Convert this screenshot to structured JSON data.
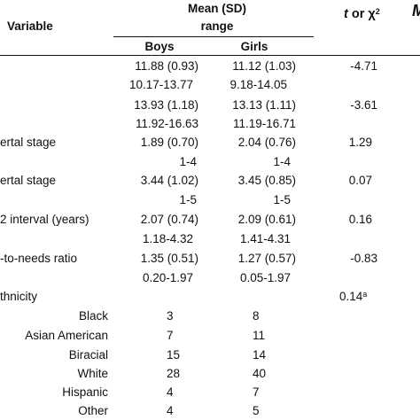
{
  "header": {
    "variable": "Variable",
    "mean_sd": "Mean (SD)",
    "range": "range",
    "stat_t": "t",
    "stat_or": " or ",
    "stat_chi": "χ",
    "stat_chi_sup": "2",
    "boys": "Boys",
    "girls": "Girls",
    "edge_glyph": "M"
  },
  "rows": [
    {
      "label": "",
      "boys": "11.88 (0.93)",
      "girls": "11.12 (1.03)",
      "stat": "-4.71"
    },
    {
      "label": "",
      "boys": "10.17-13.77",
      "girls": "9.18-14.05",
      "stat": ""
    },
    {
      "label": "",
      "boys": "13.93 (1.18)",
      "girls": "13.13 (1.11)",
      "stat": "-3.61"
    },
    {
      "label": "",
      "boys": "11.92-16.63",
      "girls": "11.19-16.71",
      "stat": ""
    },
    {
      "label": "ertal stage",
      "boys": "1.89 (0.70)",
      "girls": "2.04 (0.76)",
      "stat": "1.29"
    },
    {
      "label": "",
      "boys": "1-4",
      "girls": "1-4",
      "stat": ""
    },
    {
      "label": "ertal stage",
      "boys": "3.44 (1.02)",
      "girls": "3.45 (0.85)",
      "stat": "0.07"
    },
    {
      "label": "",
      "boys": "1-5",
      "girls": "1-5",
      "stat": ""
    },
    {
      "label": "2 interval (years)",
      "boys": "2.07 (0.74)",
      "girls": "2.09 (0.61)",
      "stat": "0.16"
    },
    {
      "label": "",
      "boys": "1.18-4.32",
      "girls": "1.41-4.31",
      "stat": ""
    },
    {
      "label": "-to-needs ratio",
      "boys": "1.35 (0.51)",
      "girls": "1.27 (0.57)",
      "stat": "-0.83"
    },
    {
      "label": "",
      "boys": "0.20-1.97",
      "girls": "0.05-1.97",
      "stat": ""
    }
  ],
  "ethnicity": {
    "label": "thnicity",
    "stat": "0.14",
    "stat_sup": "a",
    "items": [
      {
        "label": "Black",
        "boys": "3",
        "girls": "8"
      },
      {
        "label": "Asian American",
        "boys": "7",
        "girls": "11"
      },
      {
        "label": "Biracial",
        "boys": "15",
        "girls": "14"
      },
      {
        "label": "White",
        "boys": "28",
        "girls": "40"
      },
      {
        "label": "Hispanic",
        "boys": "4",
        "girls": "7"
      },
      {
        "label": "Other",
        "boys": "4",
        "girls": "5"
      }
    ]
  }
}
